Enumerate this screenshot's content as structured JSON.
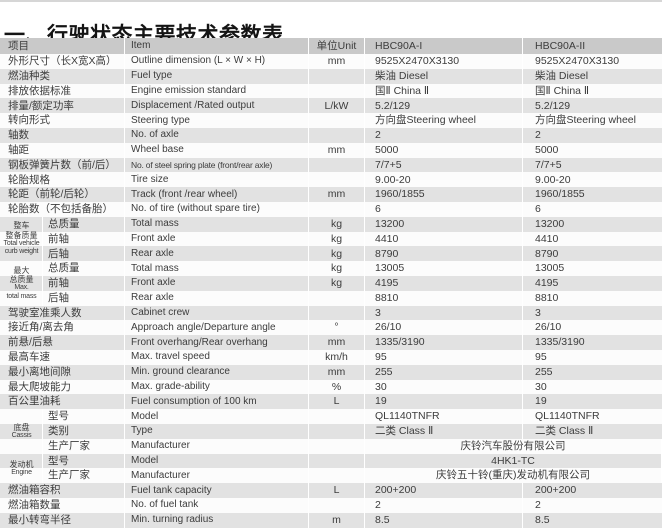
{
  "title": "一、行驶状态主要技术参数表",
  "colors": {
    "header_bg": "#c9c9c9",
    "stripe_bg": "#e2e2e2",
    "row_bg": "#fcfcfc",
    "text": "#3c3c3c",
    "title_text": "#141414"
  },
  "table": {
    "header": {
      "cn": "项目",
      "en": "Item",
      "unit": "单位Unit",
      "m1": "HBC90A-I",
      "m2": "HBC90A-II"
    },
    "rows": [
      {
        "cn": "外形尺寸（长X宽X高）",
        "en": "Outline dimension (L × W × H)",
        "unit": "mm",
        "v1": "9525X2470X3130",
        "v2": "9525X2470X3130"
      },
      {
        "cn": "燃油种类",
        "en": "Fuel type",
        "unit": "",
        "v1": "柴油 Diesel",
        "v2": "柴油 Diesel"
      },
      {
        "cn": "排放依据标准",
        "en": "Engine emission standard",
        "unit": "",
        "v1": "国Ⅱ China Ⅱ",
        "v2": "国Ⅱ China Ⅱ"
      },
      {
        "cn": "排量/额定功率",
        "en": "Displacement /Rated output",
        "unit": "L/kW",
        "v1": "5.2/129",
        "v2": "5.2/129"
      },
      {
        "cn": "转向形式",
        "en": "Steering type",
        "unit": "",
        "v1": "方向盘Steering wheel",
        "v2": "方向盘Steering wheel"
      },
      {
        "cn": "轴数",
        "en": "No. of axle",
        "unit": "",
        "v1": "2",
        "v2": "2"
      },
      {
        "cn": "轴距",
        "en": "Wheel base",
        "unit": "mm",
        "v1": "5000",
        "v2": "5000"
      },
      {
        "cn": "钢板弹簧片数（前/后）",
        "en": "No. of steel spring plate (front/rear axle)",
        "unit": "",
        "v1": "7/7+5",
        "v2": "7/7+5"
      },
      {
        "cn": "轮胎规格",
        "en": "Tire size",
        "unit": "",
        "v1": "9.00-20",
        "v2": "9.00-20"
      },
      {
        "cn": "轮距（前轮/后轮）",
        "en": "Track (front /rear wheel)",
        "unit": "mm",
        "v1": "1960/1855",
        "v2": "1960/1855"
      },
      {
        "cn": "轮胎数（不包括备胎）",
        "en": "No. of tire (without spare tire)",
        "unit": "",
        "v1": "6",
        "v2": "6"
      },
      {
        "cn": "总质量",
        "en": "Total mass",
        "unit": "kg",
        "v1": "13200",
        "v2": "13200",
        "sec": true
      },
      {
        "cn": "前轴",
        "en": "Front axle",
        "unit": "kg",
        "v1": "4410",
        "v2": "4410",
        "sec": true
      },
      {
        "cn": "后轴",
        "en": "Rear axle",
        "unit": "kg",
        "v1": "8790",
        "v2": "8790",
        "sec": true
      },
      {
        "cn": "总质量",
        "en": "Total mass",
        "unit": "kg",
        "v1": "13005",
        "v2": "13005",
        "sec": true
      },
      {
        "cn": "前轴",
        "en": "Front axle",
        "unit": "kg",
        "v1": "4195",
        "v2": "4195",
        "sec": true
      },
      {
        "cn": "后轴",
        "en": "Rear axle",
        "unit": "",
        "v1": "8810",
        "v2": "8810",
        "sec": true
      },
      {
        "cn": "驾驶室准乘人数",
        "en": "Cabinet crew",
        "unit": "",
        "v1": "3",
        "v2": "3"
      },
      {
        "cn": "接近角/离去角",
        "en": "Approach angle/Departure angle",
        "unit": "°",
        "v1": "26/10",
        "v2": "26/10"
      },
      {
        "cn": "前悬/后悬",
        "en": "Front overhang/Rear overhang",
        "unit": "mm",
        "v1": "1335/3190",
        "v2": "1335/3190"
      },
      {
        "cn": "最高车速",
        "en": "Max. travel speed",
        "unit": "km/h",
        "v1": "95",
        "v2": "95"
      },
      {
        "cn": "最小离地间隙",
        "en": "Min. ground clearance",
        "unit": "mm",
        "v1": "255",
        "v2": "255"
      },
      {
        "cn": "最大爬坡能力",
        "en": "Max. grade-ability",
        "unit": "%",
        "v1": "30",
        "v2": "30"
      },
      {
        "cn": "百公里油耗",
        "en": "Fuel consumption of 100 km",
        "unit": "L",
        "v1": "19",
        "v2": "19"
      },
      {
        "cn": "型号",
        "en": "Model",
        "unit": "",
        "v1": "QL1140TNFR",
        "v2": "QL1140TNFR",
        "sec": true
      },
      {
        "cn": "类别",
        "en": "Type",
        "unit": "",
        "v1": "二类 Class Ⅱ",
        "v2": "二类 Class Ⅱ",
        "sec": true
      },
      {
        "cn": "生产厂家",
        "en": "Manufacturer",
        "unit": "",
        "span": "庆铃汽车股份有限公司",
        "sec": true
      },
      {
        "cn": "型号",
        "en": "Model",
        "unit": "",
        "span": "4HK1-TC",
        "sec": true
      },
      {
        "cn": "生产厂家",
        "en": "Manufacturer",
        "unit": "",
        "span": "庆铃五十铃(重庆)发动机有限公司",
        "sec": true
      },
      {
        "cn": "燃油箱容积",
        "en": "Fuel tank capacity",
        "unit": "L",
        "v1": "200+200",
        "v2": "200+200"
      },
      {
        "cn": "燃油箱数量",
        "en": "No. of fuel tank",
        "unit": "",
        "v1": "2",
        "v2": "2"
      },
      {
        "cn": "最小转弯半径",
        "en": "Min. turning radius",
        "unit": "m",
        "v1": "8.5",
        "v2": "8.5"
      }
    ],
    "sections": [
      {
        "lines": [
          "整车",
          "整备质量",
          "Total vehicle",
          "curb weight"
        ],
        "start": 11,
        "count": 3
      },
      {
        "lines": [
          "最大",
          "总质量",
          "Max.",
          "total mass"
        ],
        "start": 14,
        "count": 3
      },
      {
        "lines": [
          "底盘",
          "Cassis"
        ],
        "start": 24,
        "count": 3
      },
      {
        "lines": [
          "发动机",
          "Engine"
        ],
        "start": 27,
        "count": 2
      }
    ]
  }
}
